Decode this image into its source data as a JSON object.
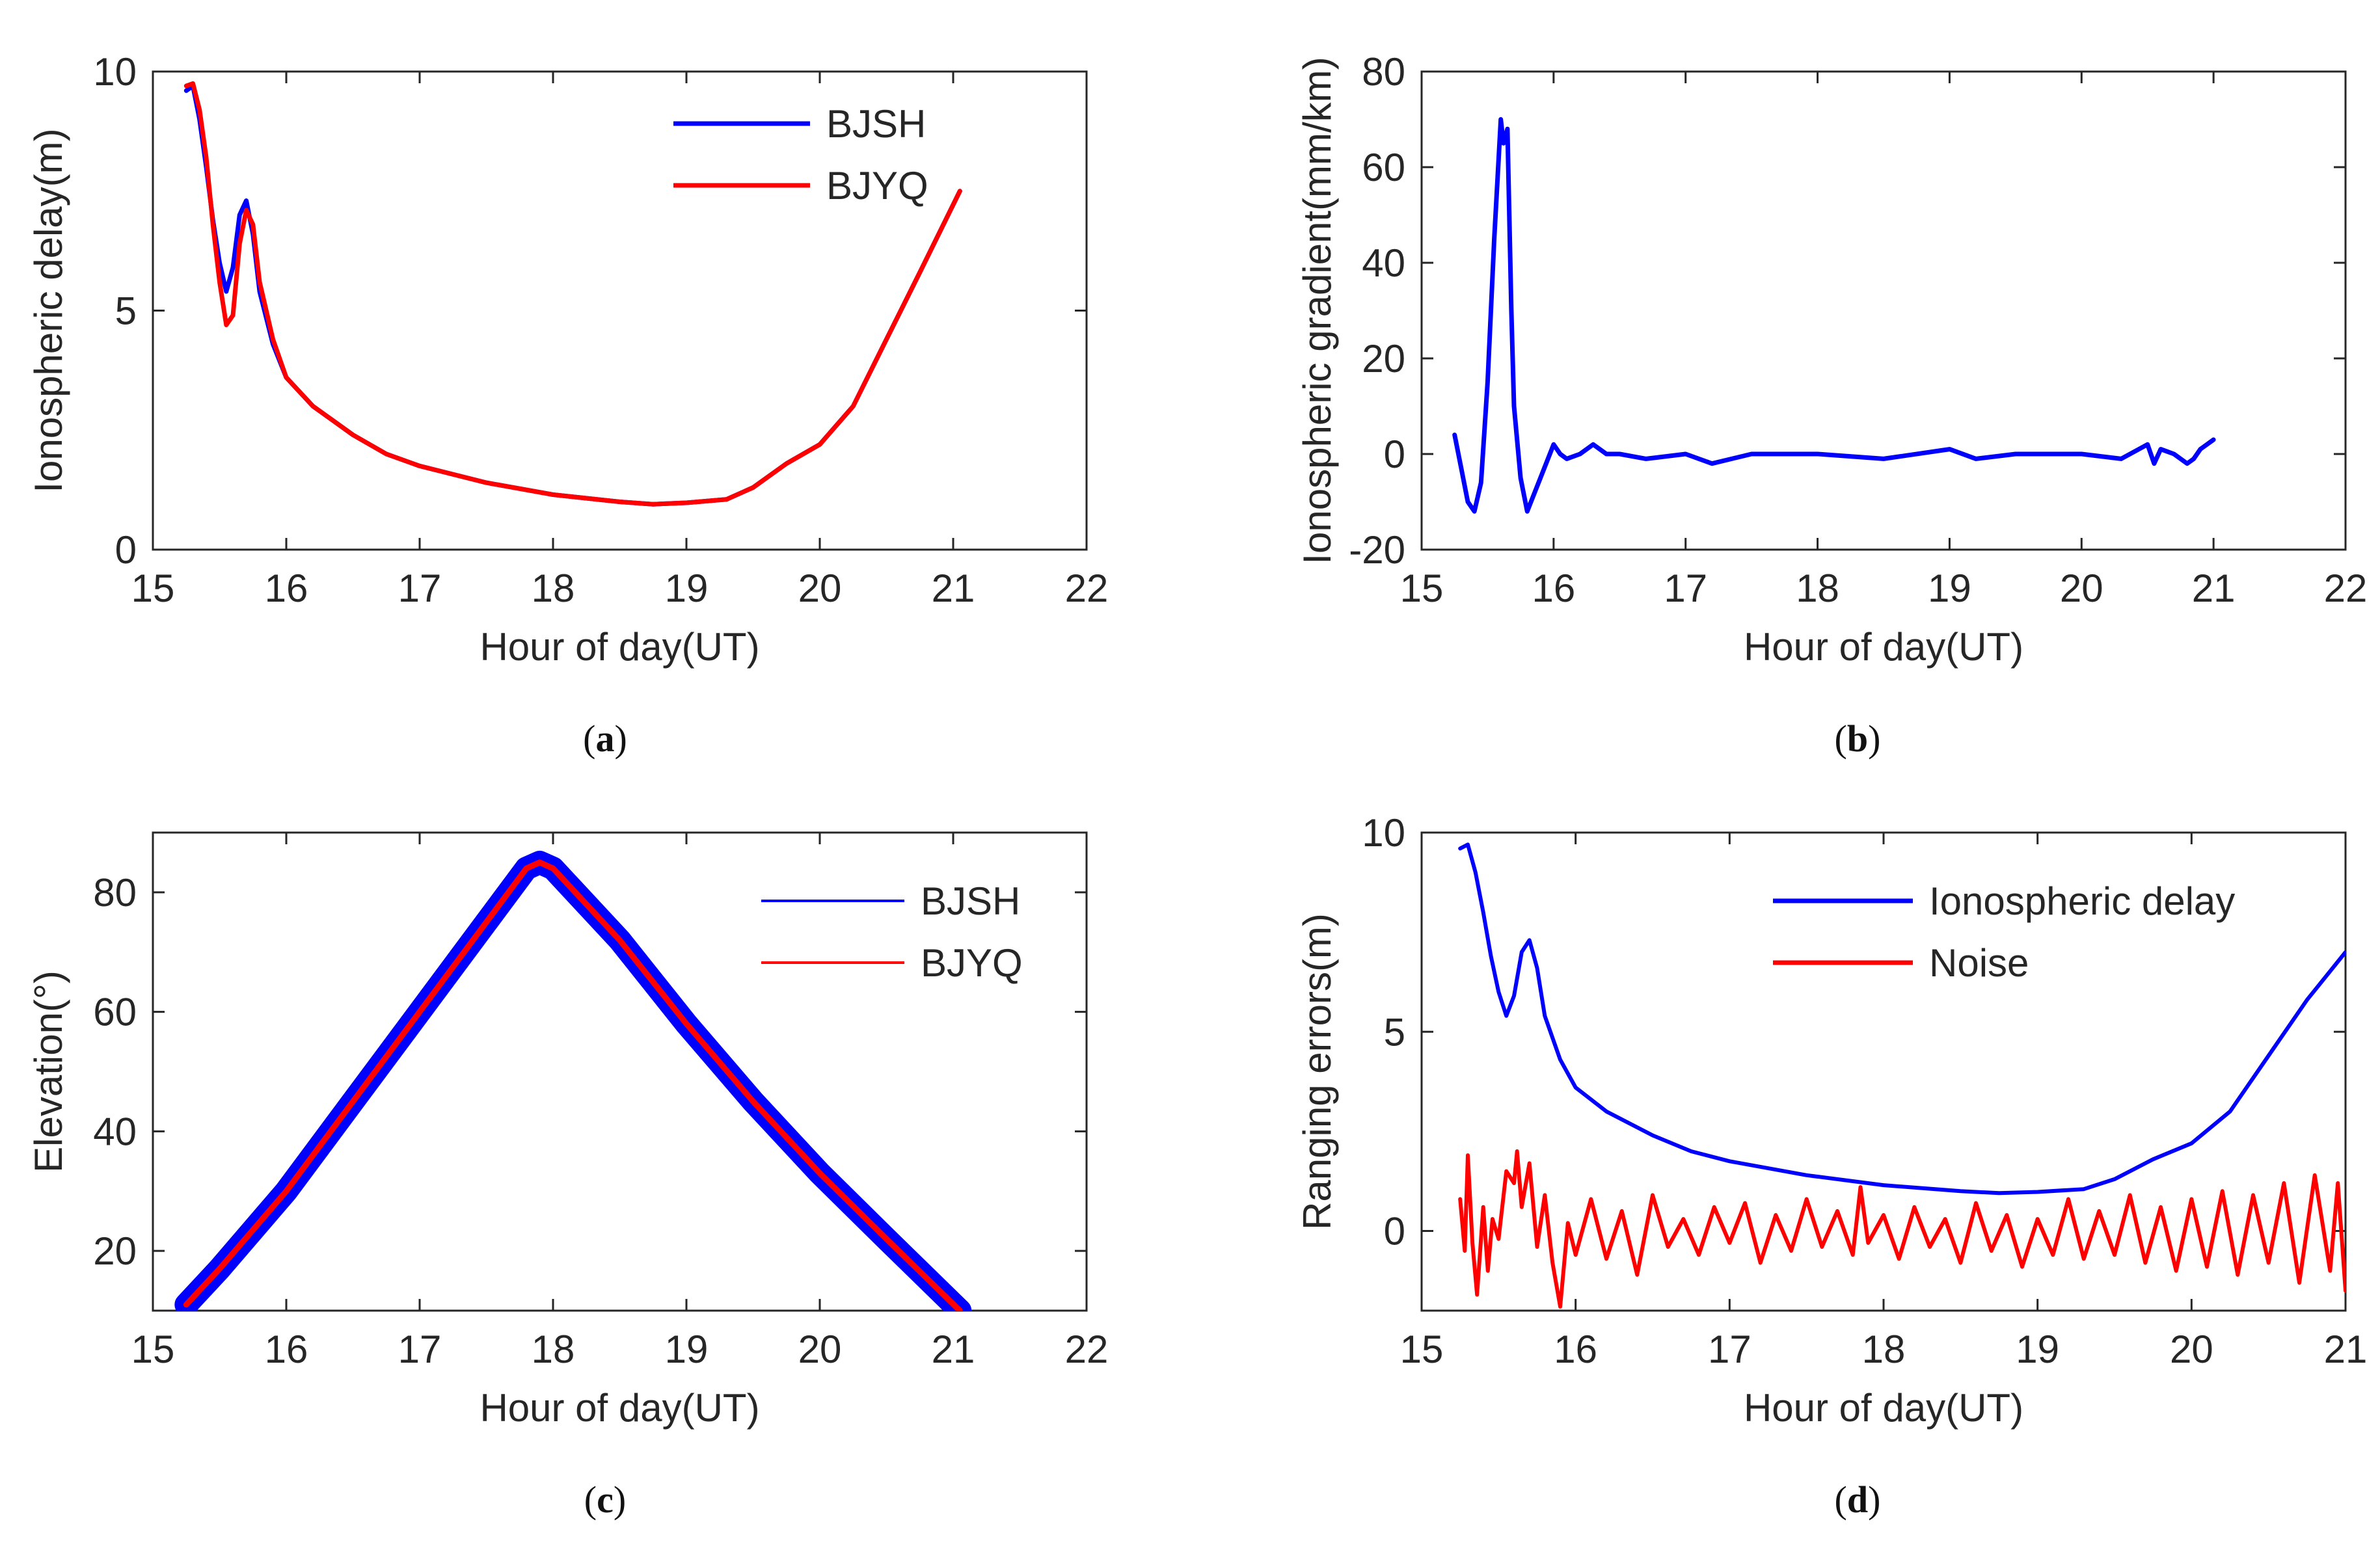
{
  "figure": {
    "captions": [
      {
        "open": "(",
        "letter": "a",
        "close": ")"
      },
      {
        "open": "(",
        "letter": "b",
        "close": ")"
      },
      {
        "open": "(",
        "letter": "c",
        "close": ")"
      },
      {
        "open": "(",
        "letter": "d",
        "close": ")"
      }
    ]
  },
  "chart_data": [
    {
      "id": "a",
      "type": "line",
      "title": "",
      "xlabel": "Hour of day(UT)",
      "ylabel": "Ionospheric delay(m)",
      "xlim": [
        15,
        22
      ],
      "ylim": [
        0,
        10
      ],
      "xticks": [
        15,
        16,
        17,
        18,
        19,
        20,
        21,
        22
      ],
      "yticks": [
        0,
        5,
        10
      ],
      "legend_position": "top-right",
      "series": [
        {
          "name": "BJSH",
          "color": "#0000ff",
          "x": [
            15.25,
            15.3,
            15.35,
            15.4,
            15.45,
            15.5,
            15.55,
            15.6,
            15.65,
            15.7,
            15.75,
            15.8,
            15.9,
            16.0,
            16.2,
            16.5,
            16.75,
            17.0,
            17.5,
            18.0,
            18.5,
            18.75,
            19.0,
            19.3,
            19.5,
            19.75,
            20.0,
            20.25,
            20.5,
            20.75,
            21.05
          ],
          "y": [
            9.6,
            9.7,
            9.0,
            8.0,
            6.9,
            6.0,
            5.4,
            5.9,
            7.0,
            7.3,
            6.6,
            5.4,
            4.3,
            3.6,
            3.0,
            2.4,
            2.0,
            1.75,
            1.4,
            1.15,
            1.0,
            0.95,
            0.98,
            1.05,
            1.3,
            1.8,
            2.2,
            3.0,
            4.4,
            5.8,
            7.5
          ]
        },
        {
          "name": "BJYQ",
          "color": "#ff0000",
          "x": [
            15.25,
            15.3,
            15.35,
            15.4,
            15.45,
            15.5,
            15.55,
            15.6,
            15.65,
            15.7,
            15.75,
            15.8,
            15.9,
            16.0,
            16.2,
            16.5,
            16.75,
            17.0,
            17.5,
            18.0,
            18.5,
            18.75,
            19.0,
            19.3,
            19.5,
            19.75,
            20.0,
            20.25,
            20.5,
            20.75,
            21.05
          ],
          "y": [
            9.7,
            9.75,
            9.2,
            8.2,
            6.8,
            5.6,
            4.7,
            4.9,
            6.4,
            7.1,
            6.8,
            5.6,
            4.4,
            3.6,
            3.0,
            2.4,
            2.0,
            1.75,
            1.4,
            1.15,
            1.0,
            0.95,
            0.98,
            1.05,
            1.3,
            1.8,
            2.2,
            3.0,
            4.4,
            5.8,
            7.5
          ]
        }
      ]
    },
    {
      "id": "b",
      "type": "line",
      "title": "",
      "xlabel": "Hour of day(UT)",
      "ylabel": "Ionospheric gradient(mm/km)",
      "xlim": [
        15,
        22
      ],
      "ylim": [
        -20,
        80
      ],
      "xticks": [
        15,
        16,
        17,
        18,
        19,
        20,
        21,
        22
      ],
      "yticks": [
        -20,
        0,
        20,
        40,
        60,
        80
      ],
      "legend_position": "none",
      "series": [
        {
          "name": "gradient",
          "color": "#0000ff",
          "x": [
            15.25,
            15.3,
            15.35,
            15.4,
            15.45,
            15.5,
            15.55,
            15.6,
            15.62,
            15.65,
            15.68,
            15.7,
            15.75,
            15.8,
            15.9,
            16.0,
            16.05,
            16.1,
            16.2,
            16.3,
            16.4,
            16.5,
            16.7,
            17.0,
            17.2,
            17.5,
            18.0,
            18.5,
            19.0,
            19.2,
            19.5,
            20.0,
            20.3,
            20.5,
            20.55,
            20.6,
            20.7,
            20.8,
            20.85,
            20.9,
            20.95,
            21.0
          ],
          "y": [
            4,
            -3,
            -10,
            -12,
            -6,
            15,
            45,
            70,
            65,
            68,
            30,
            10,
            -5,
            -12,
            -5,
            2,
            0,
            -1,
            0,
            2,
            0,
            0,
            -1,
            0,
            -2,
            0,
            0,
            -1,
            1,
            -1,
            0,
            0,
            -1,
            2,
            -2,
            1,
            0,
            -2,
            -1,
            1,
            2,
            3
          ]
        }
      ]
    },
    {
      "id": "c",
      "type": "line",
      "title": "",
      "xlabel": "Hour of day(UT)",
      "ylabel": "Elevation(°)",
      "xlim": [
        15,
        22
      ],
      "ylim": [
        10,
        90
      ],
      "xticks": [
        15,
        16,
        17,
        18,
        19,
        20,
        21,
        22
      ],
      "yticks": [
        20,
        40,
        60,
        80
      ],
      "legend_position": "top-right",
      "series": [
        {
          "name": "BJSH",
          "color": "#0000ff",
          "x": [
            15.25,
            15.5,
            16.0,
            16.5,
            17.0,
            17.5,
            17.8,
            17.9,
            18.0,
            18.5,
            19.0,
            19.5,
            20.0,
            20.5,
            21.05
          ],
          "y": [
            11,
            17,
            30,
            45,
            60,
            75,
            84,
            85,
            84,
            72,
            58,
            45,
            33,
            22,
            10
          ]
        },
        {
          "name": "BJYQ",
          "color": "#ff0000",
          "x": [
            15.25,
            15.5,
            16.0,
            16.5,
            17.0,
            17.5,
            17.8,
            17.9,
            18.0,
            18.5,
            19.0,
            19.5,
            20.0,
            20.5,
            21.05
          ],
          "y": [
            11,
            17,
            30,
            45,
            60,
            75,
            84,
            85,
            84,
            72,
            58,
            45,
            33,
            22,
            10
          ]
        }
      ]
    },
    {
      "id": "d",
      "type": "line",
      "title": "",
      "xlabel": "Hour of day(UT)",
      "ylabel": "Ranging errors(m)",
      "xlim": [
        15,
        21
      ],
      "ylim": [
        -2,
        10
      ],
      "xticks": [
        15,
        16,
        17,
        18,
        19,
        20,
        21
      ],
      "yticks": [
        0,
        5,
        10
      ],
      "legend_position": "top-right",
      "series": [
        {
          "name": "Ionospheric delay",
          "color": "#0000ff",
          "x": [
            15.25,
            15.3,
            15.35,
            15.4,
            15.45,
            15.5,
            15.55,
            15.6,
            15.65,
            15.7,
            15.75,
            15.8,
            15.9,
            16.0,
            16.2,
            16.5,
            16.75,
            17.0,
            17.5,
            18.0,
            18.5,
            18.75,
            19.0,
            19.3,
            19.5,
            19.75,
            20.0,
            20.25,
            20.5,
            20.75,
            21.0
          ],
          "y": [
            9.6,
            9.7,
            9.0,
            8.0,
            6.9,
            6.0,
            5.4,
            5.9,
            7.0,
            7.3,
            6.6,
            5.4,
            4.3,
            3.6,
            3.0,
            2.4,
            2.0,
            1.75,
            1.4,
            1.15,
            1.0,
            0.95,
            0.98,
            1.05,
            1.3,
            1.8,
            2.2,
            3.0,
            4.4,
            5.8,
            7.0
          ]
        },
        {
          "name": "Noise",
          "color": "#ff0000",
          "x": [
            15.25,
            15.28,
            15.3,
            15.33,
            15.36,
            15.4,
            15.43,
            15.46,
            15.5,
            15.55,
            15.6,
            15.62,
            15.65,
            15.7,
            15.75,
            15.8,
            15.85,
            15.9,
            15.95,
            16.0,
            16.1,
            16.2,
            16.3,
            16.4,
            16.5,
            16.6,
            16.7,
            16.8,
            16.9,
            17.0,
            17.1,
            17.2,
            17.3,
            17.4,
            17.5,
            17.6,
            17.7,
            17.8,
            17.85,
            17.9,
            18.0,
            18.1,
            18.2,
            18.3,
            18.4,
            18.5,
            18.6,
            18.7,
            18.8,
            18.9,
            19.0,
            19.1,
            19.2,
            19.3,
            19.4,
            19.5,
            19.6,
            19.7,
            19.8,
            19.9,
            20.0,
            20.1,
            20.2,
            20.3,
            20.4,
            20.5,
            20.6,
            20.7,
            20.8,
            20.9,
            20.95,
            21.0
          ],
          "y": [
            0.8,
            -0.5,
            1.9,
            -0.3,
            -1.6,
            0.6,
            -1.0,
            0.3,
            -0.2,
            1.5,
            1.2,
            2.0,
            0.6,
            1.7,
            -0.4,
            0.9,
            -0.8,
            -1.9,
            0.2,
            -0.6,
            0.8,
            -0.7,
            0.5,
            -1.1,
            0.9,
            -0.4,
            0.3,
            -0.6,
            0.6,
            -0.3,
            0.7,
            -0.8,
            0.4,
            -0.5,
            0.8,
            -0.4,
            0.5,
            -0.6,
            1.1,
            -0.3,
            0.4,
            -0.7,
            0.6,
            -0.4,
            0.3,
            -0.8,
            0.7,
            -0.5,
            0.4,
            -0.9,
            0.3,
            -0.6,
            0.8,
            -0.7,
            0.5,
            -0.6,
            0.9,
            -0.8,
            0.6,
            -1.0,
            0.8,
            -0.9,
            1.0,
            -1.1,
            0.9,
            -0.8,
            1.2,
            -1.3,
            1.4,
            -1.0,
            1.2,
            -1.5
          ]
        }
      ]
    }
  ]
}
